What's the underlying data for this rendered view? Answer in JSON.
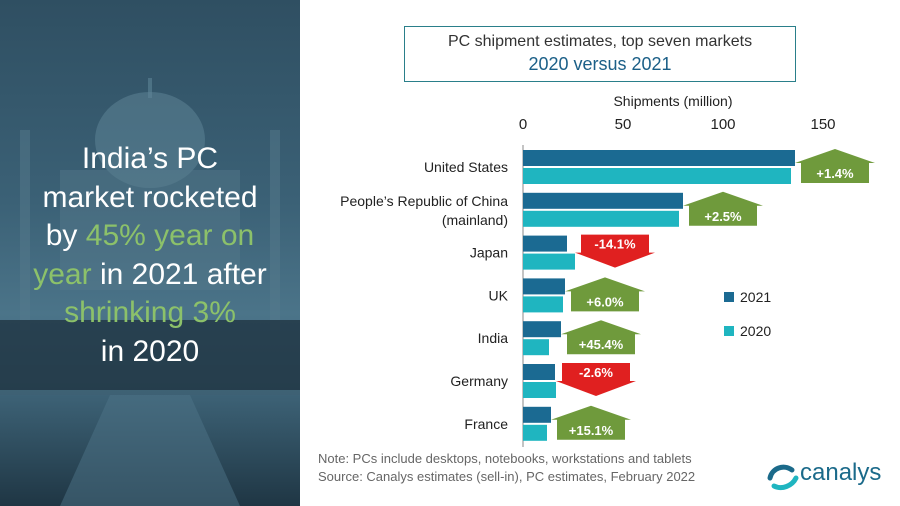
{
  "headline": {
    "line1": "India’s PC",
    "line2": "market rocketed",
    "line3a": "by ",
    "line3b": "45% year on",
    "line4a": "year",
    "line4b": " in 2021 after",
    "line5": "shrinking 3%",
    "line6": "in 2020"
  },
  "title": {
    "line1": "PC shipment estimates, top seven markets",
    "line2": "2020 versus 2021"
  },
  "note": "Note: PCs include desktops, notebooks, workstations and tablets",
  "source": "Source: Canalys estimates (sell-in), PC estimates, February 2022",
  "logo_text": "canalys",
  "colors": {
    "series_2021": "#1b6a92",
    "series_2020": "#1fb5c0",
    "up": "#6f9a3c",
    "down": "#e02020",
    "headline_accent": "#8cc16a"
  },
  "chart_data": {
    "type": "bar",
    "orientation": "horizontal",
    "axis_title": "Shipments (million)",
    "xlim": [
      0,
      150
    ],
    "ticks": [
      "0",
      "50",
      "100",
      "150"
    ],
    "grid": false,
    "legend_position": "right",
    "categories": [
      {
        "label": "United States",
        "label_line2": ""
      },
      {
        "label": "People’s Republic of China",
        "label_line2": "(mainland)"
      },
      {
        "label": "Japan",
        "label_line2": ""
      },
      {
        "label": "UK",
        "label_line2": ""
      },
      {
        "label": "India",
        "label_line2": ""
      },
      {
        "label": "Germany",
        "label_line2": ""
      },
      {
        "label": "France",
        "label_line2": ""
      }
    ],
    "series": [
      {
        "name": "2021",
        "values": [
          136,
          80,
          22,
          21,
          19,
          16,
          14
        ]
      },
      {
        "name": "2020",
        "values": [
          134,
          78,
          26,
          20,
          13,
          16.5,
          12
        ]
      }
    ],
    "changes": [
      {
        "text": "+1.4%",
        "direction": "up"
      },
      {
        "text": "+2.5%",
        "direction": "up"
      },
      {
        "text": "-14.1%",
        "direction": "down"
      },
      {
        "text": "+6.0%",
        "direction": "up"
      },
      {
        "text": "+45.4%",
        "direction": "up"
      },
      {
        "text": "-2.6%",
        "direction": "down"
      },
      {
        "text": "+15.1%",
        "direction": "up"
      }
    ]
  }
}
